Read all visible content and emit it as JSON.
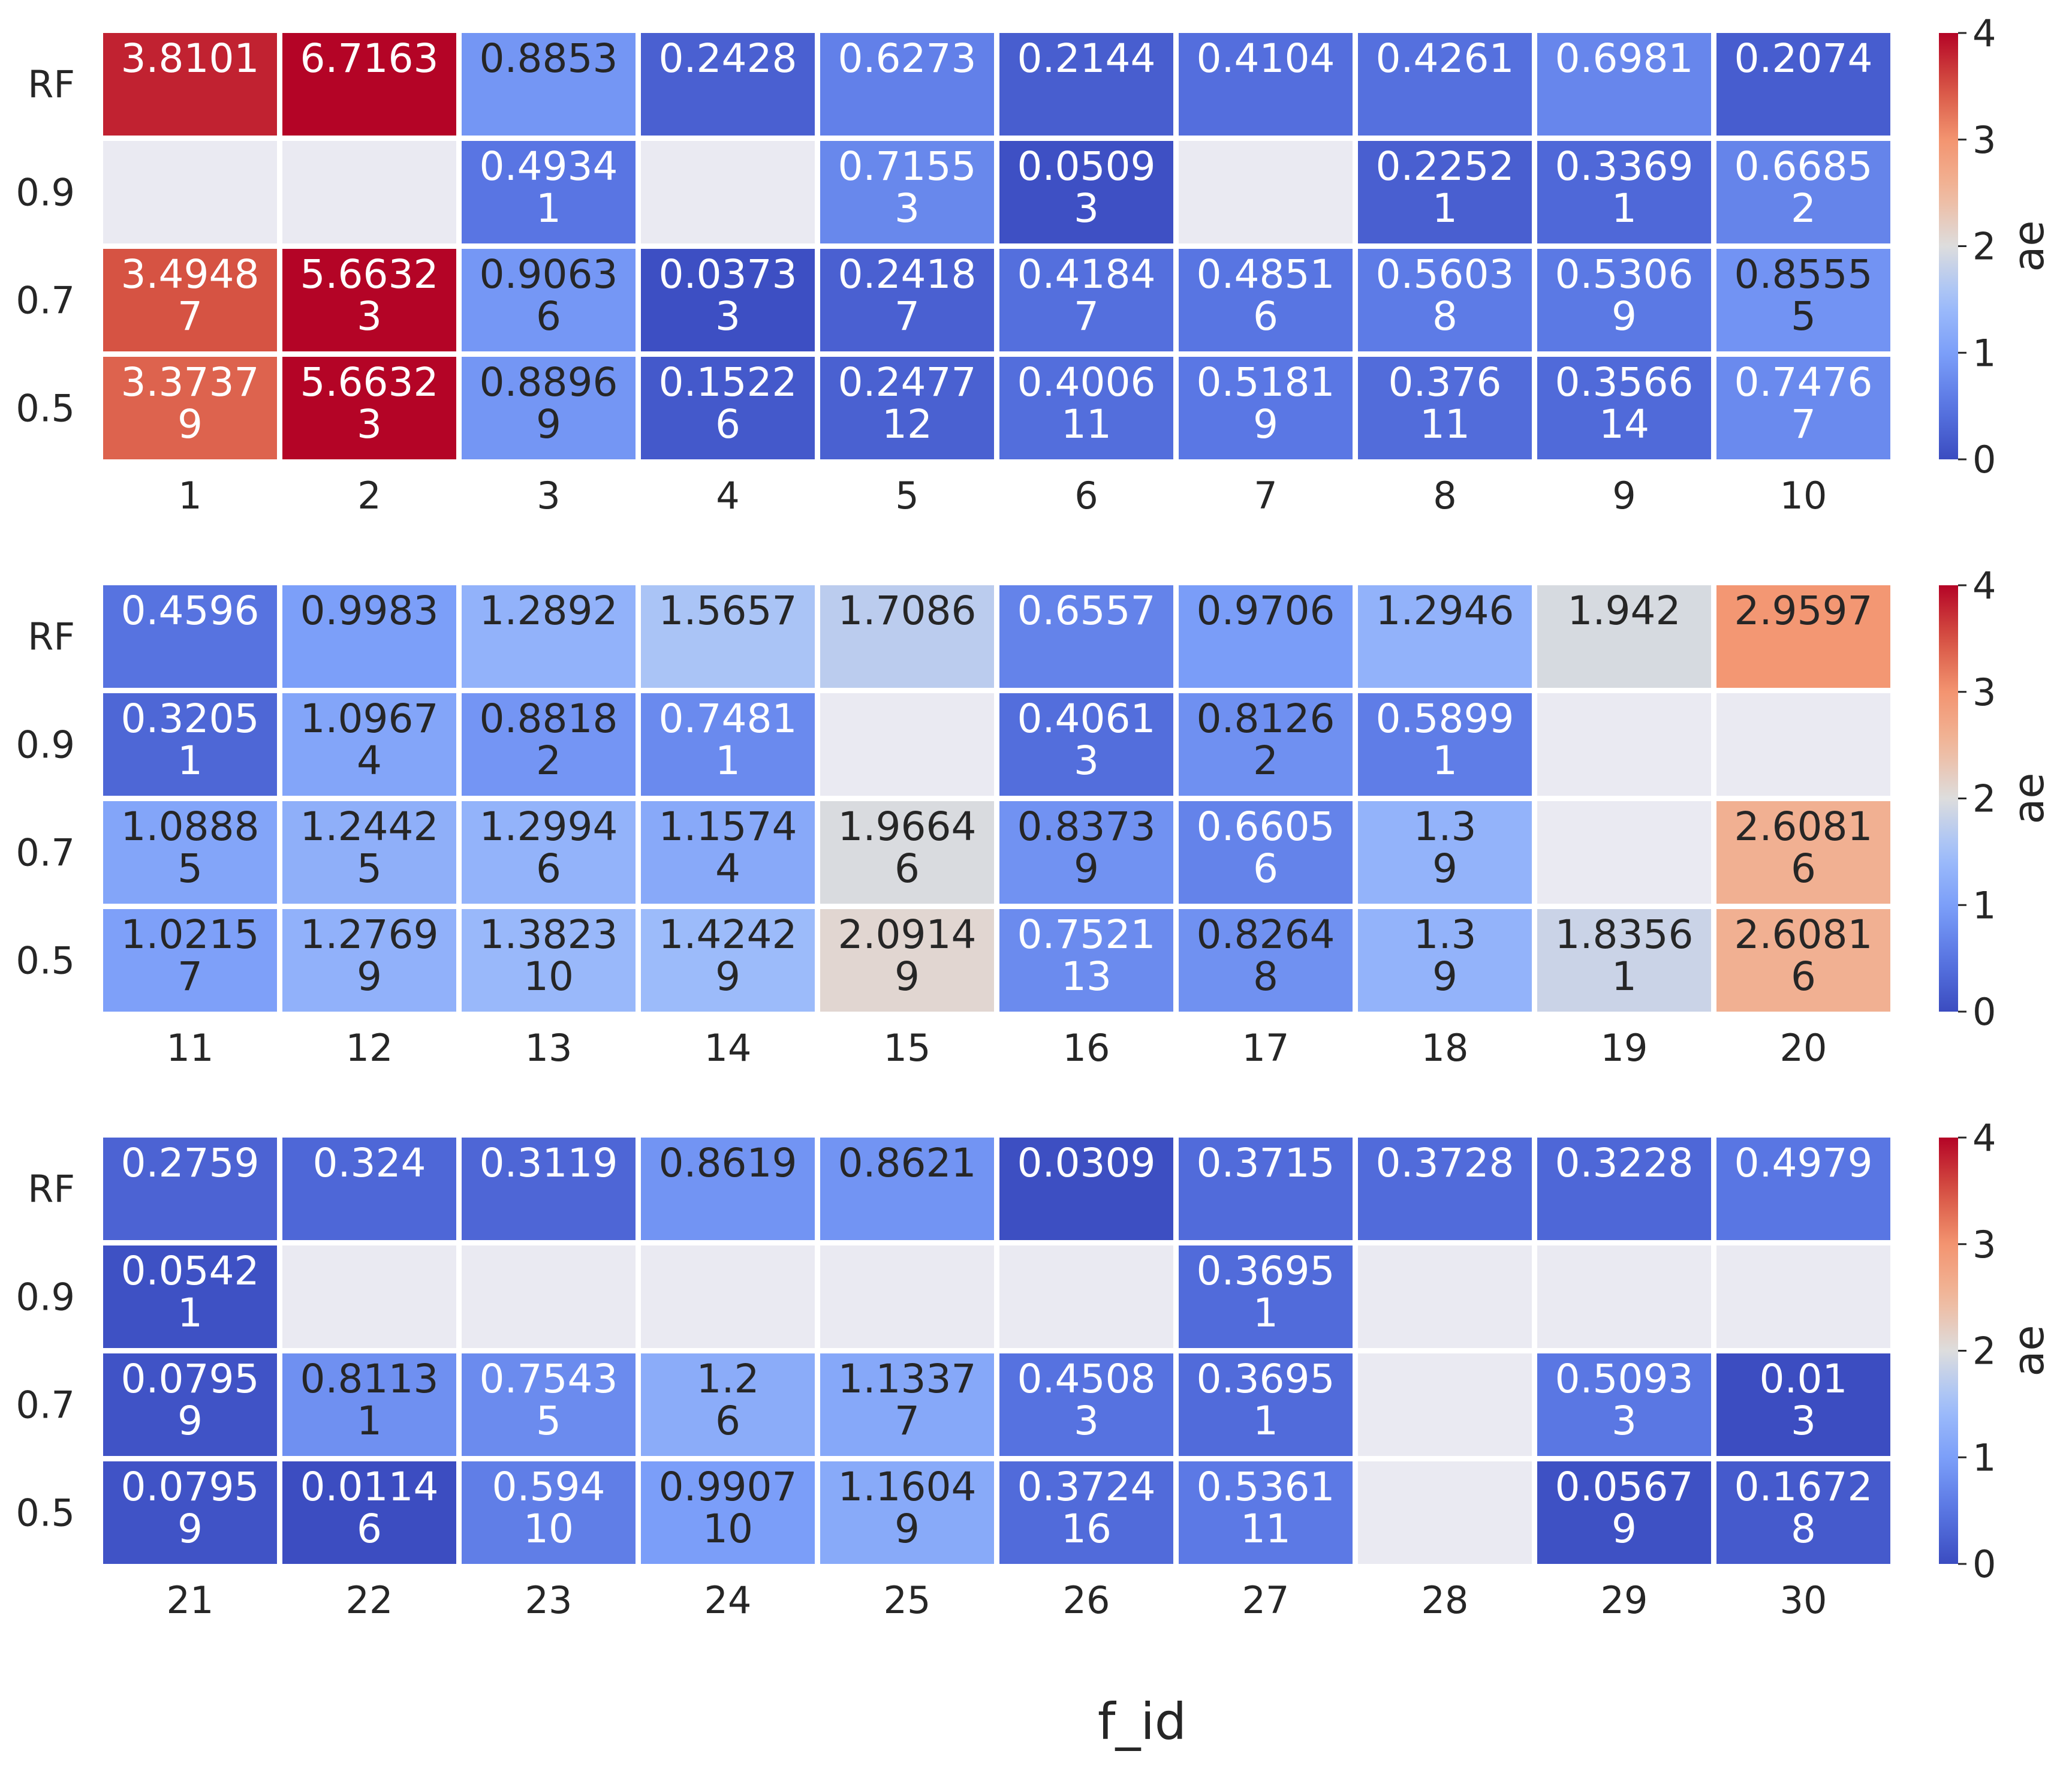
{
  "chart_data": {
    "type": "heatmap",
    "colormap": "coolwarm",
    "missing_color": "#eaeaf2",
    "xlabel": "f_id",
    "row_labels": [
      "RF",
      "0.9",
      "0.7",
      "0.5"
    ],
    "colorbar": {
      "label": "ae",
      "vmin": 0,
      "vmax": 4,
      "ticks": [
        "0",
        "1",
        "2",
        "3",
        "4"
      ]
    },
    "panels": [
      {
        "columns": [
          "1",
          "2",
          "3",
          "4",
          "5",
          "6",
          "7",
          "8",
          "9",
          "10"
        ],
        "cells": [
          [
            [
              "3.8101"
            ],
            [
              "6.7163"
            ],
            [
              "0.8853"
            ],
            [
              "0.2428"
            ],
            [
              "0.6273"
            ],
            [
              "0.2144"
            ],
            [
              "0.4104"
            ],
            [
              "0.4261"
            ],
            [
              "0.6981"
            ],
            [
              "0.2074"
            ]
          ],
          [
            null,
            null,
            [
              "0.4934",
              "1"
            ],
            null,
            [
              "0.7155",
              "3"
            ],
            [
              "0.0509",
              "3"
            ],
            null,
            [
              "0.2252",
              "1"
            ],
            [
              "0.3369",
              "1"
            ],
            [
              "0.6685",
              "2"
            ]
          ],
          [
            [
              "3.4948",
              "7"
            ],
            [
              "5.6632",
              "3"
            ],
            [
              "0.9063",
              "6"
            ],
            [
              "0.0373",
              "3"
            ],
            [
              "0.2418",
              "7"
            ],
            [
              "0.4184",
              "7"
            ],
            [
              "0.4851",
              "6"
            ],
            [
              "0.5603",
              "8"
            ],
            [
              "0.5306",
              "9"
            ],
            [
              "0.8555",
              "5"
            ]
          ],
          [
            [
              "3.3737",
              "9"
            ],
            [
              "5.6632",
              "3"
            ],
            [
              "0.8896",
              "9"
            ],
            [
              "0.1522",
              "6"
            ],
            [
              "0.2477",
              "12"
            ],
            [
              "0.4006",
              "11"
            ],
            [
              "0.5181",
              "9"
            ],
            [
              "0.376",
              "11"
            ],
            [
              "0.3566",
              "14"
            ],
            [
              "0.7476",
              "7"
            ]
          ]
        ]
      },
      {
        "columns": [
          "11",
          "12",
          "13",
          "14",
          "15",
          "16",
          "17",
          "18",
          "19",
          "20"
        ],
        "cells": [
          [
            [
              "0.4596"
            ],
            [
              "0.9983"
            ],
            [
              "1.2892"
            ],
            [
              "1.5657"
            ],
            [
              "1.7086"
            ],
            [
              "0.6557"
            ],
            [
              "0.9706"
            ],
            [
              "1.2946"
            ],
            [
              "1.942"
            ],
            [
              "2.9597"
            ]
          ],
          [
            [
              "0.3205",
              "1"
            ],
            [
              "1.0967",
              "4"
            ],
            [
              "0.8818",
              "2"
            ],
            [
              "0.7481",
              "1"
            ],
            null,
            [
              "0.4061",
              "3"
            ],
            [
              "0.8126",
              "2"
            ],
            [
              "0.5899",
              "1"
            ],
            null,
            null
          ],
          [
            [
              "1.0888",
              "5"
            ],
            [
              "1.2442",
              "5"
            ],
            [
              "1.2994",
              "6"
            ],
            [
              "1.1574",
              "4"
            ],
            [
              "1.9664",
              "6"
            ],
            [
              "0.8373",
              "9"
            ],
            [
              "0.6605",
              "6"
            ],
            [
              "1.3",
              "9"
            ],
            null,
            [
              "2.6081",
              "6"
            ]
          ],
          [
            [
              "1.0215",
              "7"
            ],
            [
              "1.2769",
              "9"
            ],
            [
              "1.3823",
              "10"
            ],
            [
              "1.4242",
              "9"
            ],
            [
              "2.0914",
              "9"
            ],
            [
              "0.7521",
              "13"
            ],
            [
              "0.8264",
              "8"
            ],
            [
              "1.3",
              "9"
            ],
            [
              "1.8356",
              "1"
            ],
            [
              "2.6081",
              "6"
            ]
          ]
        ]
      },
      {
        "columns": [
          "21",
          "22",
          "23",
          "24",
          "25",
          "26",
          "27",
          "28",
          "29",
          "30"
        ],
        "cells": [
          [
            [
              "0.2759"
            ],
            [
              "0.324"
            ],
            [
              "0.3119"
            ],
            [
              "0.8619"
            ],
            [
              "0.8621"
            ],
            [
              "0.0309"
            ],
            [
              "0.3715"
            ],
            [
              "0.3728"
            ],
            [
              "0.3228"
            ],
            [
              "0.4979"
            ]
          ],
          [
            [
              "0.0542",
              "1"
            ],
            null,
            null,
            null,
            null,
            null,
            [
              "0.3695",
              "1"
            ],
            null,
            null,
            null
          ],
          [
            [
              "0.0795",
              "9"
            ],
            [
              "0.8113",
              "1"
            ],
            [
              "0.7543",
              "5"
            ],
            [
              "1.2",
              "6"
            ],
            [
              "1.1337",
              "7"
            ],
            [
              "0.4508",
              "3"
            ],
            [
              "0.3695",
              "1"
            ],
            null,
            [
              "0.5093",
              "3"
            ],
            [
              "0.01",
              "3"
            ]
          ],
          [
            [
              "0.0795",
              "9"
            ],
            [
              "0.0114",
              "6"
            ],
            [
              "0.594",
              "10"
            ],
            [
              "0.9907",
              "10"
            ],
            [
              "1.1604",
              "9"
            ],
            [
              "0.3724",
              "16"
            ],
            [
              "0.5361",
              "11"
            ],
            null,
            [
              "0.0567",
              "9"
            ],
            [
              "0.1672",
              "8"
            ]
          ]
        ]
      }
    ]
  }
}
